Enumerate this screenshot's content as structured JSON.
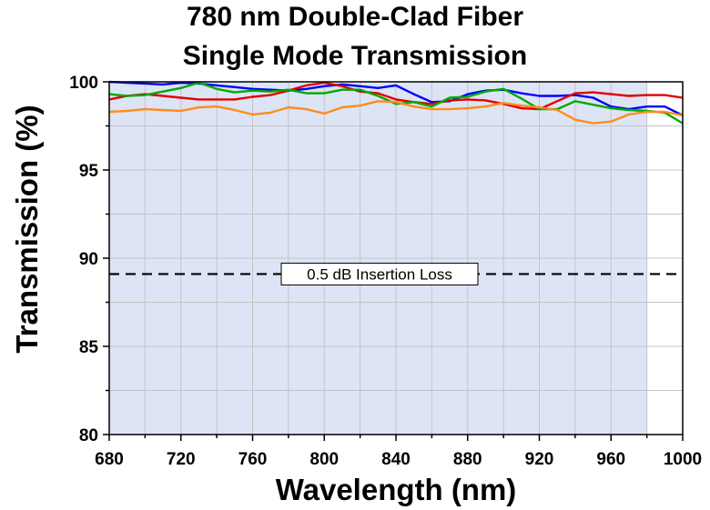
{
  "chart_data": {
    "type": "line",
    "title_lines": [
      "780 nm Double-Clad Fiber",
      "Single Mode Transmission"
    ],
    "xlabel": "Wavelength (nm)",
    "ylabel": "Transmission (%)",
    "xlim": [
      680,
      1000
    ],
    "ylim": [
      80,
      100
    ],
    "xticks": [
      680,
      720,
      760,
      800,
      840,
      880,
      920,
      960,
      1000
    ],
    "yticks": [
      80,
      85,
      90,
      95,
      100
    ],
    "grid": true,
    "shaded_region": {
      "x": [
        680,
        980
      ],
      "color": "#dde4f5"
    },
    "reference_line": {
      "y": 89.1,
      "label": "0.5 dB Insertion Loss",
      "style": "dashed"
    },
    "series": [
      {
        "color": "#0000ff",
        "x": [
          680,
          690,
          700,
          710,
          720,
          730,
          740,
          750,
          760,
          770,
          780,
          790,
          800,
          810,
          820,
          830,
          840,
          850,
          860,
          870,
          880,
          890,
          900,
          910,
          920,
          930,
          940,
          950,
          960,
          970,
          980,
          990,
          1000
        ],
        "y": [
          100.0,
          99.95,
          99.9,
          99.85,
          99.95,
          99.9,
          99.8,
          99.7,
          99.6,
          99.55,
          99.5,
          99.6,
          99.75,
          99.85,
          99.75,
          99.65,
          99.8,
          99.3,
          98.85,
          98.9,
          99.3,
          99.5,
          99.55,
          99.35,
          99.2,
          99.2,
          99.25,
          99.1,
          98.6,
          98.45,
          98.6,
          98.6,
          98.1
        ]
      },
      {
        "color": "#e00000",
        "x": [
          680,
          690,
          700,
          710,
          720,
          730,
          740,
          750,
          760,
          770,
          780,
          790,
          800,
          810,
          820,
          830,
          840,
          850,
          860,
          870,
          880,
          890,
          900,
          910,
          920,
          930,
          940,
          950,
          960,
          970,
          980,
          990,
          1000
        ],
        "y": [
          99.0,
          99.2,
          99.3,
          99.2,
          99.1,
          99.0,
          99.0,
          99.0,
          99.15,
          99.25,
          99.5,
          99.8,
          99.95,
          99.75,
          99.45,
          99.35,
          99.0,
          98.85,
          98.75,
          98.95,
          99.0,
          98.95,
          98.75,
          98.5,
          98.45,
          98.9,
          99.35,
          99.4,
          99.3,
          99.2,
          99.25,
          99.25,
          99.1
        ]
      },
      {
        "color": "#00aa00",
        "x": [
          680,
          690,
          700,
          710,
          720,
          730,
          740,
          750,
          760,
          770,
          780,
          790,
          800,
          810,
          820,
          830,
          840,
          850,
          860,
          870,
          880,
          890,
          900,
          910,
          920,
          930,
          940,
          950,
          960,
          970,
          980,
          990,
          1000
        ],
        "y": [
          99.3,
          99.2,
          99.25,
          99.45,
          99.65,
          99.95,
          99.6,
          99.4,
          99.5,
          99.45,
          99.55,
          99.35,
          99.35,
          99.55,
          99.55,
          99.2,
          98.75,
          98.85,
          98.6,
          99.1,
          99.15,
          99.45,
          99.6,
          99.05,
          98.45,
          98.45,
          98.9,
          98.7,
          98.5,
          98.4,
          98.35,
          98.25,
          97.65
        ]
      },
      {
        "color": "#ff8c1a",
        "x": [
          680,
          690,
          700,
          710,
          720,
          730,
          740,
          750,
          760,
          770,
          780,
          790,
          800,
          810,
          820,
          830,
          840,
          850,
          860,
          870,
          880,
          890,
          900,
          910,
          920,
          930,
          940,
          950,
          960,
          970,
          980,
          990,
          1000
        ],
        "y": [
          98.3,
          98.35,
          98.45,
          98.4,
          98.35,
          98.55,
          98.6,
          98.4,
          98.15,
          98.25,
          98.55,
          98.45,
          98.2,
          98.55,
          98.65,
          98.9,
          98.85,
          98.6,
          98.45,
          98.45,
          98.5,
          98.6,
          98.8,
          98.65,
          98.55,
          98.4,
          97.85,
          97.65,
          97.75,
          98.15,
          98.3,
          98.3,
          98.1
        ]
      }
    ]
  }
}
